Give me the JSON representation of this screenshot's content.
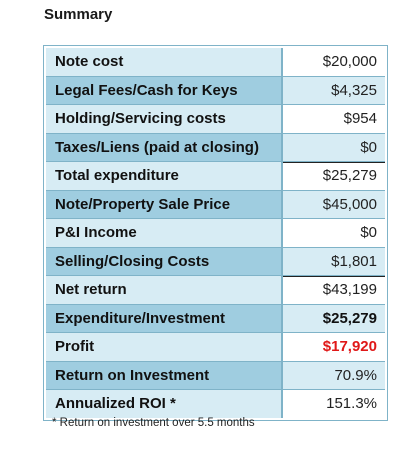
{
  "title": "Summary",
  "rows": [
    {
      "label": "Note cost",
      "value": "$20,000"
    },
    {
      "label": "Legal Fees/Cash for Keys",
      "value": "$4,325"
    },
    {
      "label": "Holding/Servicing costs",
      "value": "$954"
    },
    {
      "label": "Taxes/Liens (paid at closing)",
      "value": "$0"
    },
    {
      "label": "Total expenditure",
      "value": "$25,279"
    },
    {
      "label": "Note/Property Sale Price",
      "value": "$45,000"
    },
    {
      "label": "P&I Income",
      "value": "$0"
    },
    {
      "label": "Selling/Closing Costs",
      "value": "$1,801"
    },
    {
      "label": "Net return",
      "value": "$43,199"
    },
    {
      "label": "Expenditure/Investment",
      "value": "$25,279"
    },
    {
      "label": "Profit",
      "value": "$17,920"
    },
    {
      "label": "Return on Investment",
      "value": "70.9%"
    },
    {
      "label": "Annualized ROI *",
      "value": "151.3%"
    }
  ],
  "footnote": "* Return on investment over 5.5 months",
  "colors": {
    "profit": "#e01818",
    "header_band": "#9fcde0",
    "light_band": "#d7ecf4"
  }
}
